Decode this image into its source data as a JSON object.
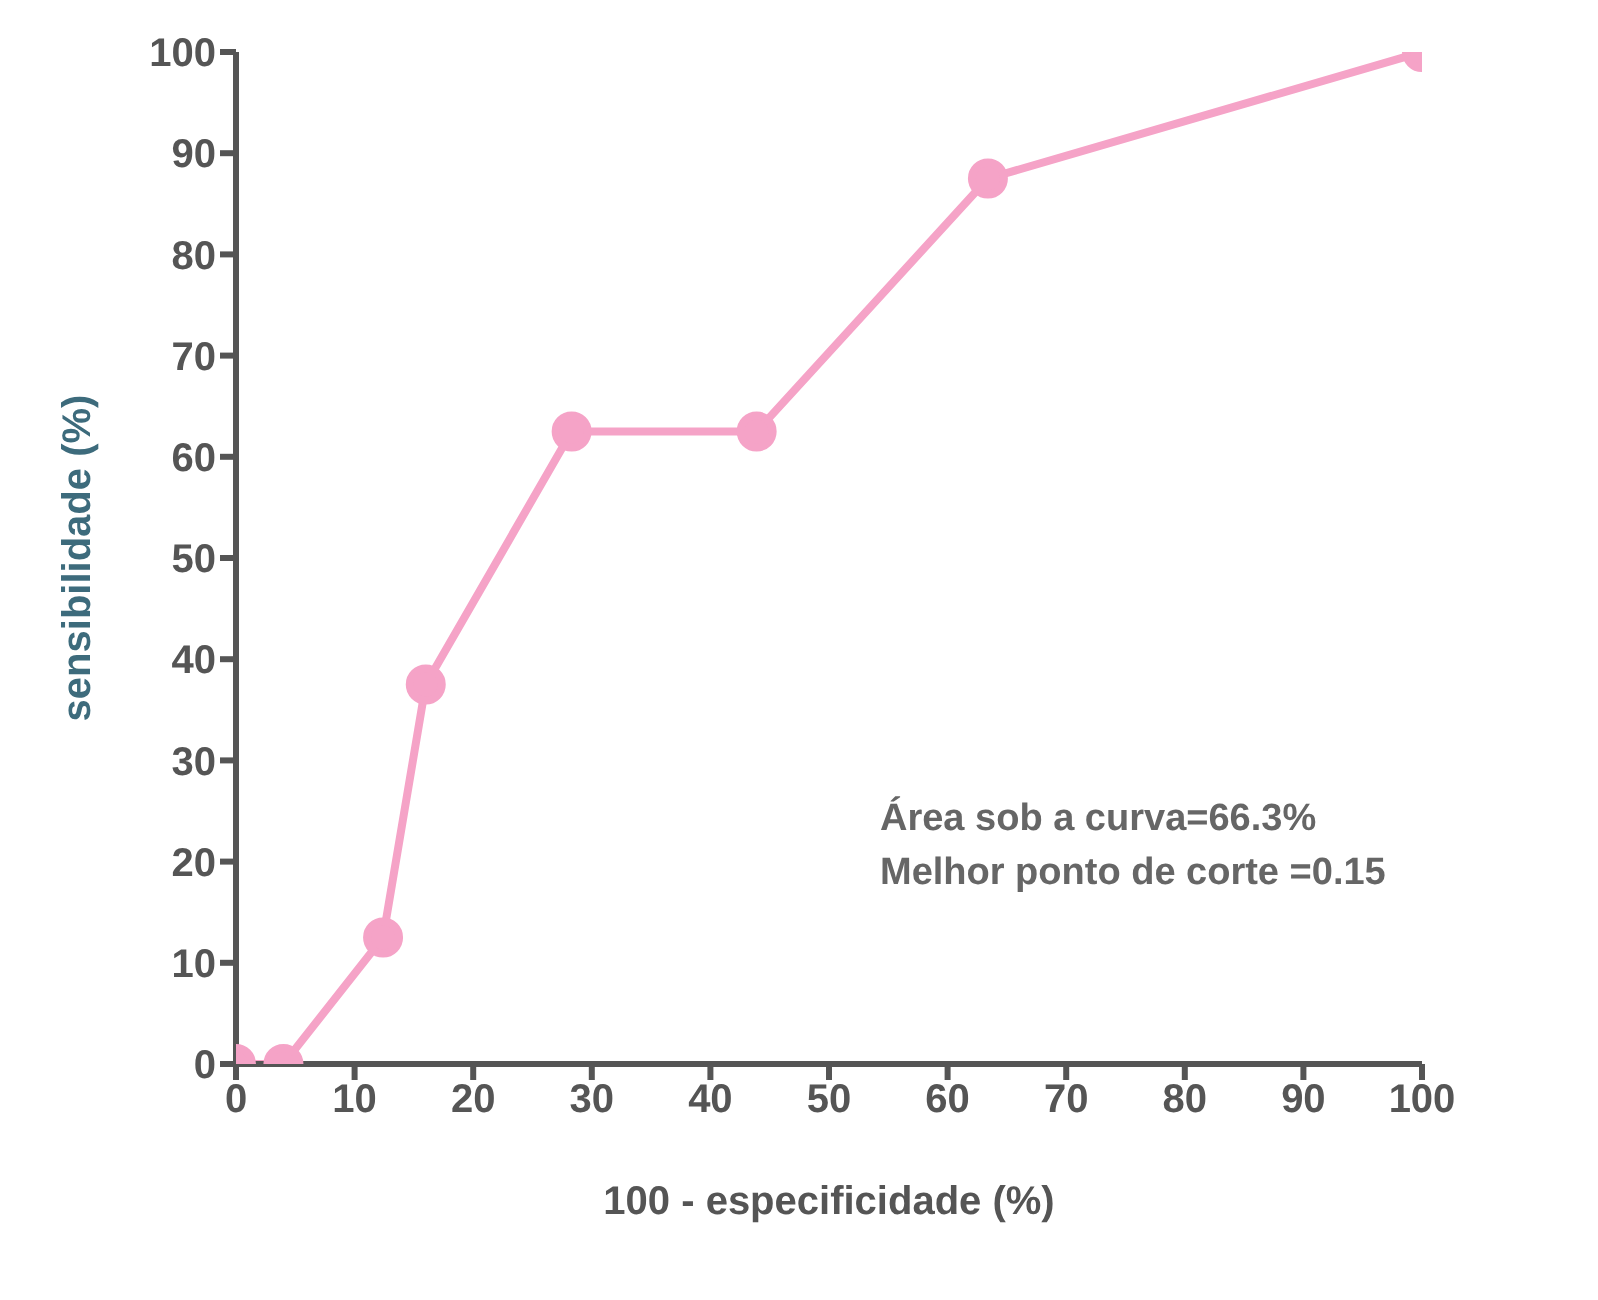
{
  "chart_data": {
    "type": "line",
    "xlabel": "100 - especificidade (%)",
    "ylabel": "sensibilidade (%)",
    "x": [
      0,
      4,
      12.4,
      16,
      28.3,
      43.9,
      63.4,
      100
    ],
    "series": [
      {
        "color": "#f5a3c7",
        "values": [
          0,
          0,
          12.5,
          37.5,
          62.5,
          62.5,
          87.5,
          100
        ]
      }
    ],
    "xlim": [
      0,
      100
    ],
    "xticks": [
      0,
      10,
      20,
      30,
      40,
      50,
      60,
      70,
      80,
      90,
      100
    ],
    "ylim": [
      0,
      100
    ],
    "yticks": [
      0,
      10,
      20,
      30,
      40,
      50,
      60,
      70,
      80,
      90,
      100
    ],
    "marker": "circle",
    "line_style": "solid",
    "grid": false,
    "legend": false,
    "annotations": [
      "Área sob a curva=66.3%",
      "Melhor ponto de corte =0.15"
    ]
  }
}
